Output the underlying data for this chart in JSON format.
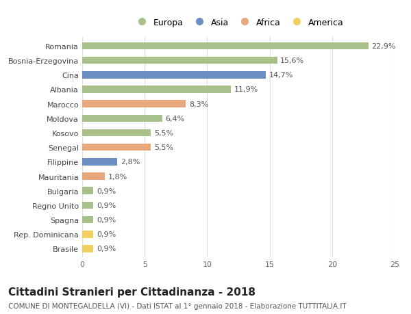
{
  "categories": [
    "Romania",
    "Bosnia-Erzegovina",
    "Cina",
    "Albania",
    "Marocco",
    "Moldova",
    "Kosovo",
    "Senegal",
    "Filippine",
    "Mauritania",
    "Bulgaria",
    "Regno Unito",
    "Spagna",
    "Rep. Dominicana",
    "Brasile"
  ],
  "values": [
    22.9,
    15.6,
    14.7,
    11.9,
    8.3,
    6.4,
    5.5,
    5.5,
    2.8,
    1.8,
    0.9,
    0.9,
    0.9,
    0.9,
    0.9
  ],
  "continents": [
    "Europa",
    "Europa",
    "Asia",
    "Europa",
    "Africa",
    "Europa",
    "Europa",
    "Africa",
    "Asia",
    "Africa",
    "Europa",
    "Europa",
    "Europa",
    "America",
    "America"
  ],
  "colors": {
    "Europa": "#a8c08a",
    "Asia": "#6a8fc2",
    "Africa": "#e8a87c",
    "America": "#f0d060"
  },
  "legend_labels": [
    "Europa",
    "Asia",
    "Africa",
    "America"
  ],
  "legend_colors": [
    "#a8c08a",
    "#6a8fc2",
    "#e8a87c",
    "#f0d060"
  ],
  "title": "Cittadini Stranieri per Cittadinanza - 2018",
  "subtitle": "COMUNE DI MONTEGALDELLA (VI) - Dati ISTAT al 1° gennaio 2018 - Elaborazione TUTTITALIA.IT",
  "xlim": [
    0,
    25
  ],
  "xticks": [
    0,
    5,
    10,
    15,
    20,
    25
  ],
  "bar_height": 0.5,
  "background_color": "#ffffff",
  "grid_color": "#dddddd",
  "label_fontsize": 8,
  "tick_fontsize": 8,
  "title_fontsize": 11,
  "subtitle_fontsize": 7.5
}
